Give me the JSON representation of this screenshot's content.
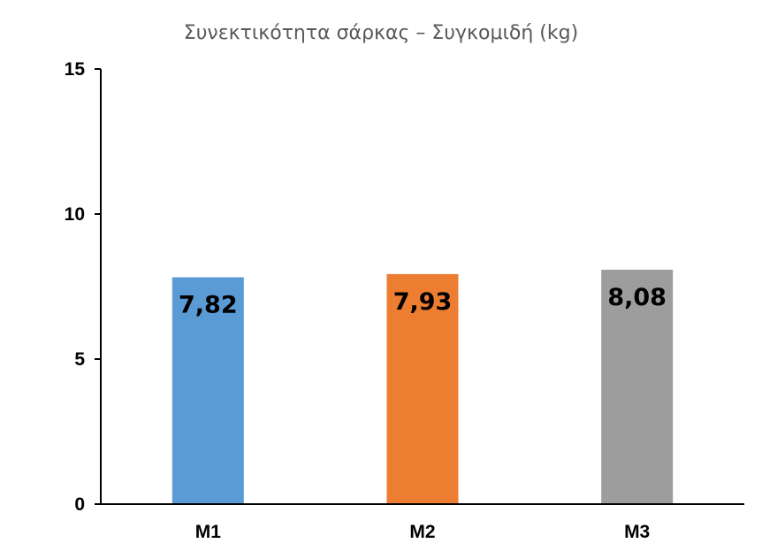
{
  "chart_data": {
    "type": "bar",
    "title": "Συνεκτικότητα σάρκας – Συγκομιδή (kg)",
    "xlabel": "",
    "ylabel": "",
    "categories": [
      "M1",
      "M2",
      "M3"
    ],
    "values": [
      7.82,
      7.93,
      8.08
    ],
    "data_labels": [
      "7,82",
      "7,93",
      "8,08"
    ],
    "ylim": [
      0,
      15
    ],
    "yticks": [
      0,
      5,
      10,
      15
    ],
    "ytick_labels": [
      "0",
      "5",
      "10",
      "15"
    ],
    "grid": false,
    "legend": "none",
    "colors": [
      "#5B9BD5",
      "#ED7D31",
      "#A5A5A5"
    ],
    "bar_patterns": [
      "solid",
      "solid",
      "fine-hatch"
    ]
  }
}
